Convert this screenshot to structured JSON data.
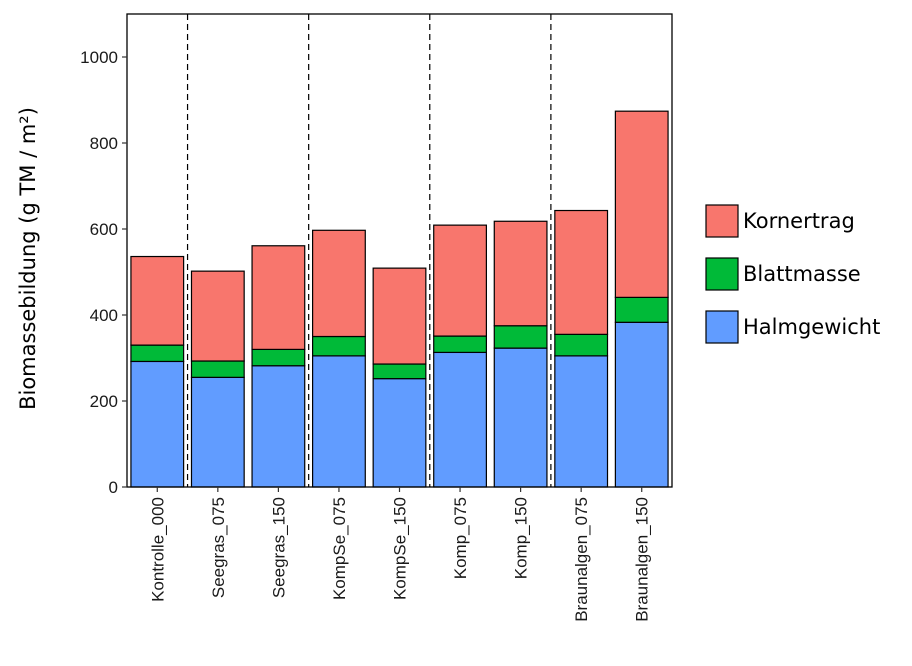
{
  "chart_data": {
    "type": "bar",
    "stacked": true,
    "ylabel": "Biomassebildung (g TM / m²)",
    "ylim": [
      0,
      1100
    ],
    "yticks": [
      0,
      200,
      400,
      600,
      800,
      1000
    ],
    "categories": [
      "Kontrolle_000",
      "Seegras_075",
      "Seegras_150",
      "KompSe_075",
      "KompSe_150",
      "Komp_075",
      "Komp_150",
      "Braunalgen_075",
      "Braunalgen_150"
    ],
    "group_separators_after": [
      "Kontrolle_000",
      "Seegras_150",
      "KompSe_150",
      "Komp_150"
    ],
    "series": [
      {
        "name": "Halmgewicht",
        "color": "#619CFF",
        "values": [
          292,
          255,
          282,
          305,
          252,
          313,
          323,
          305,
          383
        ]
      },
      {
        "name": "Blattmasse",
        "color": "#00BA38",
        "values": [
          38,
          38,
          38,
          45,
          34,
          38,
          52,
          50,
          58
        ]
      },
      {
        "name": "Kornertrag",
        "color": "#F8766D",
        "values": [
          206,
          209,
          241,
          247,
          223,
          258,
          243,
          288,
          433
        ]
      }
    ],
    "legend": {
      "position": "right",
      "order": [
        "Kornertrag",
        "Blattmasse",
        "Halmgewicht"
      ]
    },
    "grid": false
  }
}
